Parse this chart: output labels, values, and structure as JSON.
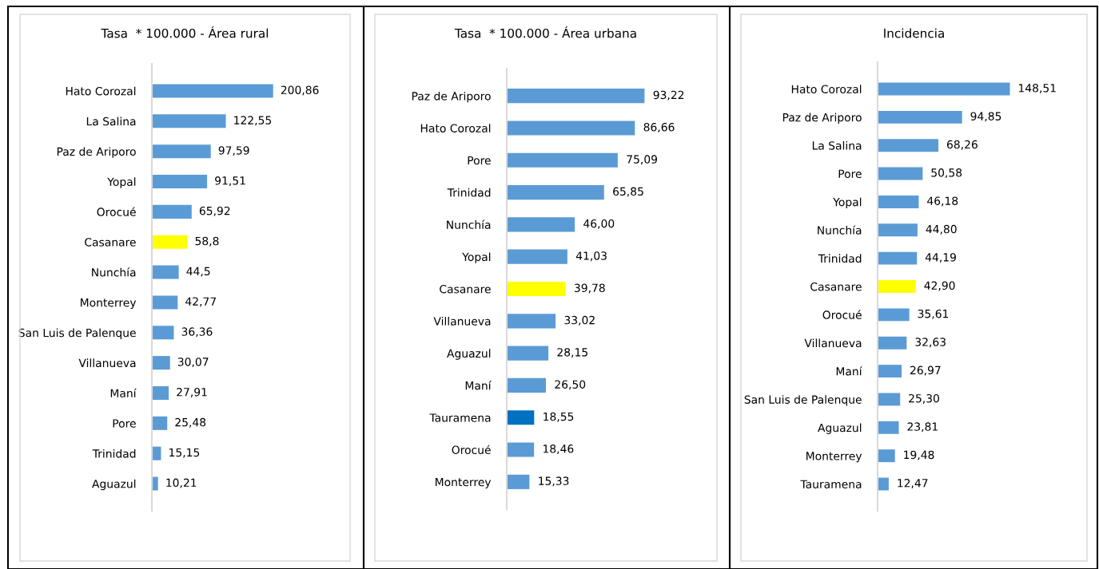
{
  "chart_data": [
    {
      "type": "bar",
      "orientation": "horizontal",
      "title": "Tasa  * 100.000 - Área rural",
      "categories": [
        "Hato Corozal",
        "La Salina",
        "Paz de Ariporo",
        "Yopal",
        "Orocué",
        "Casanare",
        "Nunchía",
        "Monterrey",
        "San Luis de Palenque",
        "Villanueva",
        "Maní",
        "Pore",
        "Trinidad",
        "Aguazul"
      ],
      "values": [
        200.86,
        122.55,
        97.59,
        91.51,
        65.92,
        58.8,
        44.5,
        42.77,
        36.36,
        30.07,
        27.91,
        25.48,
        15.15,
        10.21
      ],
      "value_labels": [
        "200,86",
        "122,55",
        "97,59",
        "91,51",
        "65,92",
        "58,8",
        "44,5",
        "42,77",
        "36,36",
        "30,07",
        "27,91",
        "25,48",
        "15,15",
        "10,21"
      ],
      "colors": [
        "#5b9bd5",
        "#5b9bd5",
        "#5b9bd5",
        "#5b9bd5",
        "#5b9bd5",
        "#ffff00",
        "#5b9bd5",
        "#5b9bd5",
        "#5b9bd5",
        "#5b9bd5",
        "#5b9bd5",
        "#5b9bd5",
        "#5b9bd5",
        "#5b9bd5"
      ]
    },
    {
      "type": "bar",
      "orientation": "horizontal",
      "title": "Tasa  * 100.000 - Área urbana",
      "categories": [
        "Paz de Ariporo",
        "Hato Corozal",
        "Pore",
        "Trinidad",
        "Nunchía",
        "Yopal",
        "Casanare",
        "Villanueva",
        "Aguazul",
        "Maní",
        "Tauramena",
        "Orocué",
        "Monterrey"
      ],
      "values": [
        93.22,
        86.66,
        75.09,
        65.85,
        46.0,
        41.03,
        39.78,
        33.02,
        28.15,
        26.5,
        18.55,
        18.46,
        15.33
      ],
      "value_labels": [
        "93,22",
        "86,66",
        "75,09",
        "65,85",
        "46,00",
        "41,03",
        "39,78",
        "33,02",
        "28,15",
        "26,50",
        "18,55",
        "18,46",
        "15,33"
      ],
      "colors": [
        "#5b9bd5",
        "#5b9bd5",
        "#5b9bd5",
        "#5b9bd5",
        "#5b9bd5",
        "#5b9bd5",
        "#ffff00",
        "#5b9bd5",
        "#5b9bd5",
        "#5b9bd5",
        "#0070c0",
        "#5b9bd5",
        "#5b9bd5"
      ]
    },
    {
      "type": "bar",
      "orientation": "horizontal",
      "title": "Incidencia",
      "categories": [
        "Hato Corozal",
        "Paz de Ariporo",
        "La Salina",
        "Pore",
        "Yopal",
        "Nunchía",
        "Trinidad",
        "Casanare",
        "Orocué",
        "Villanueva",
        "Maní",
        "San Luis de Palenque",
        "Aguazul",
        "Monterrey",
        "Tauramena"
      ],
      "values": [
        148.51,
        94.85,
        68.26,
        50.58,
        46.18,
        44.8,
        44.19,
        42.9,
        35.61,
        32.63,
        26.97,
        25.3,
        23.81,
        19.48,
        12.47
      ],
      "value_labels": [
        "148,51",
        "94,85",
        "68,26",
        "50,58",
        "46,18",
        "44,80",
        "44,19",
        "42,90",
        "35,61",
        "32,63",
        "26,97",
        "25,30",
        "23,81",
        "19,48",
        "12,47"
      ],
      "colors": [
        "#5b9bd5",
        "#5b9bd5",
        "#5b9bd5",
        "#5b9bd5",
        "#5b9bd5",
        "#5b9bd5",
        "#5b9bd5",
        "#ffff00",
        "#5b9bd5",
        "#5b9bd5",
        "#5b9bd5",
        "#5b9bd5",
        "#5b9bd5",
        "#5b9bd5",
        "#5b9bd5"
      ]
    }
  ]
}
